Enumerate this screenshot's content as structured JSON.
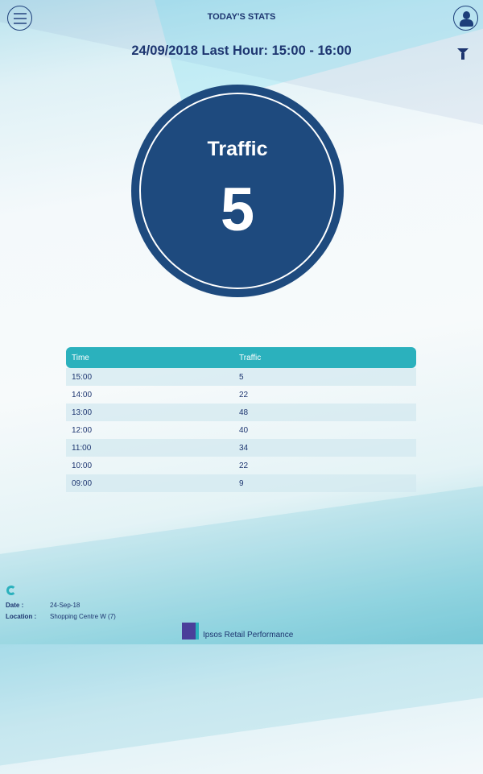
{
  "header": {
    "title": "TODAY'S STATS",
    "subtitle": "24/09/2018 Last Hour: 15:00 - 16:00",
    "menu_icon": "hamburger-icon",
    "user_icon": "user-icon",
    "filter_icon": "filter-icon"
  },
  "summary": {
    "label": "Traffic",
    "value": "5",
    "color": "#1e4a7e"
  },
  "table": {
    "headers": [
      "Time",
      "Traffic"
    ],
    "rows": [
      [
        "15:00",
        "5"
      ],
      [
        "14:00",
        "22"
      ],
      [
        "13:00",
        "48"
      ],
      [
        "12:00",
        "40"
      ],
      [
        "11:00",
        "34"
      ],
      [
        "10:00",
        "22"
      ],
      [
        "09:00",
        "9"
      ]
    ],
    "header_color": "#2bb1bd"
  },
  "footer": {
    "date_label": "Date       :",
    "date_value": "24-Sep-18",
    "location_label": "Location :",
    "location_value": "Shopping Centre W (7)",
    "logo_text": "Ipsos",
    "brand": "Ipsos Retail Performance"
  }
}
